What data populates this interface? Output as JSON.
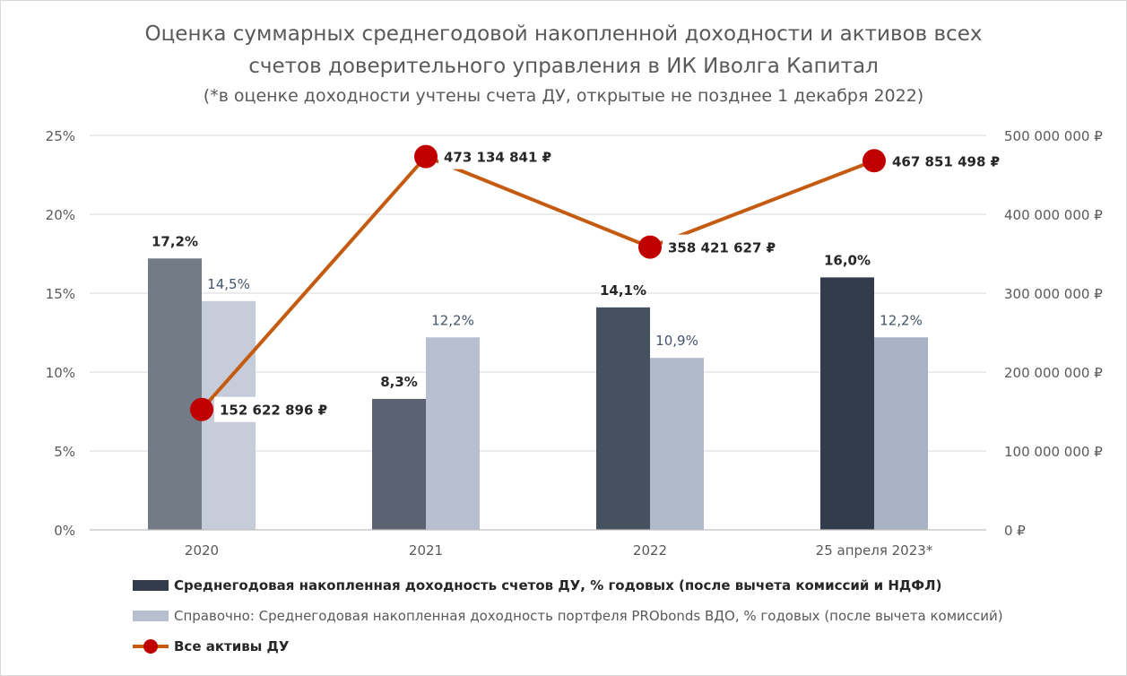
{
  "chart_data": {
    "type": "bar+line",
    "title_line1": "Оценка суммарных среднегодовой накопленной доходности и активов всех",
    "title_line2": "счетов доверительного управления в ИК Иволга Капитал",
    "subtitle": "(*в оценке доходности учтены счета ДУ, открытые не позднее 1 декабря 2022)",
    "categories": [
      "2020",
      "2021",
      "2022",
      "25 апреля 2023*"
    ],
    "y_left": {
      "min": 0,
      "max": 25,
      "ticks": [
        0,
        5,
        10,
        15,
        20,
        25
      ],
      "tick_labels": [
        "0%",
        "5%",
        "10%",
        "15%",
        "20%",
        "25%"
      ]
    },
    "y_right": {
      "min": 0,
      "max": 500000000,
      "ticks": [
        0,
        100000000,
        200000000,
        300000000,
        400000000,
        500000000
      ],
      "tick_labels": [
        "0 ₽",
        "100 000 000 ₽",
        "200 000 000 ₽",
        "300 000 000 ₽",
        "400 000 000 ₽",
        "500 000 000 ₽"
      ]
    },
    "grid": "horizontal",
    "legend_position": "bottom",
    "series": [
      {
        "name": "Среднегодовая накопленная доходность счетов ДУ, % годовых (после вычета комиссий и НДФЛ)",
        "type": "bar",
        "axis": "left",
        "values": [
          17.2,
          8.3,
          14.1,
          16.0
        ],
        "labels": [
          "17,2%",
          "8,3%",
          "14,1%",
          "16,0%"
        ],
        "colors": [
          "#737b86",
          "#5b6272",
          "#465160",
          "#323c4c"
        ],
        "legend_color": "#323c4c"
      },
      {
        "name": "Справочно: Среднегодовая накопленная доходность портфеля PRObonds ВДО, % годовых (после вычета комиссий)",
        "type": "bar",
        "axis": "left",
        "values": [
          14.5,
          12.2,
          10.9,
          12.2
        ],
        "labels": [
          "14,5%",
          "12,2%",
          "10,9%",
          "12,2%"
        ],
        "colors": [
          "#c6ccd9",
          "#b7bfd0",
          "#b0bacb",
          "#a8b3c5"
        ],
        "legend_color": "#b7bfd0"
      },
      {
        "name": "Все активы ДУ",
        "type": "line",
        "axis": "right",
        "values": [
          152622896,
          473134841,
          358421627,
          467851498
        ],
        "labels": [
          "152 622 896 ₽",
          "473 134 841 ₽",
          "358 421 627 ₽",
          "467 851 498 ₽"
        ],
        "line_color": "#c55a11",
        "marker_color": "#c00000"
      }
    ]
  }
}
